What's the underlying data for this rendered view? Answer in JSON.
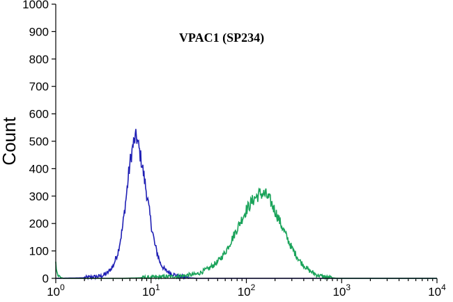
{
  "chart_data": {
    "type": "line",
    "title": "VPAC1 (SP234)",
    "xlabel": "",
    "ylabel": "Count",
    "x_scale": "log",
    "xlim": [
      1,
      10000
    ],
    "ylim": [
      0,
      1000
    ],
    "x_ticks": [
      {
        "value": 1,
        "base": "10",
        "exp": "0"
      },
      {
        "value": 10,
        "base": "10",
        "exp": "1"
      },
      {
        "value": 100,
        "base": "10",
        "exp": "2"
      },
      {
        "value": 1000,
        "base": "10",
        "exp": "3"
      },
      {
        "value": 10000,
        "base": "10",
        "exp": "4"
      }
    ],
    "y_ticks": [
      "0",
      "100",
      "200",
      "300",
      "400",
      "500",
      "600",
      "700",
      "800",
      "900",
      "1000"
    ],
    "grid": false,
    "legend": "none",
    "series": [
      {
        "color": "#1f1fb4",
        "points": [
          [
            1.0,
            0
          ],
          [
            2.0,
            2
          ],
          [
            3.0,
            8
          ],
          [
            3.5,
            20
          ],
          [
            4.0,
            45
          ],
          [
            4.5,
            95
          ],
          [
            5.0,
            180
          ],
          [
            5.5,
            300
          ],
          [
            6.0,
            420
          ],
          [
            6.5,
            490
          ],
          [
            7.0,
            520
          ],
          [
            7.5,
            470
          ],
          [
            8.0,
            420
          ],
          [
            9.0,
            310
          ],
          [
            10.0,
            200
          ],
          [
            11.0,
            120
          ],
          [
            12.5,
            55
          ],
          [
            14.0,
            30
          ],
          [
            17.0,
            15
          ],
          [
            20.0,
            6
          ],
          [
            25.0,
            2
          ],
          [
            30.0,
            0
          ],
          [
            100.0,
            0
          ],
          [
            10000.0,
            0
          ]
        ]
      },
      {
        "color": "#1aa35a",
        "points": [
          [
            1.0,
            55
          ],
          [
            1.05,
            10
          ],
          [
            1.2,
            0
          ],
          [
            5.0,
            0
          ],
          [
            10.0,
            3
          ],
          [
            20.0,
            8
          ],
          [
            30.0,
            15
          ],
          [
            40.0,
            35
          ],
          [
            50.0,
            60
          ],
          [
            60.0,
            95
          ],
          [
            70.0,
            140
          ],
          [
            85.0,
            200
          ],
          [
            100.0,
            250
          ],
          [
            120.0,
            290
          ],
          [
            140.0,
            310
          ],
          [
            160.0,
            305
          ],
          [
            180.0,
            280
          ],
          [
            210.0,
            230
          ],
          [
            250.0,
            170
          ],
          [
            300.0,
            110
          ],
          [
            370.0,
            60
          ],
          [
            450.0,
            30
          ],
          [
            550.0,
            12
          ],
          [
            700.0,
            4
          ],
          [
            900.0,
            0
          ],
          [
            10000.0,
            0
          ]
        ]
      }
    ]
  }
}
